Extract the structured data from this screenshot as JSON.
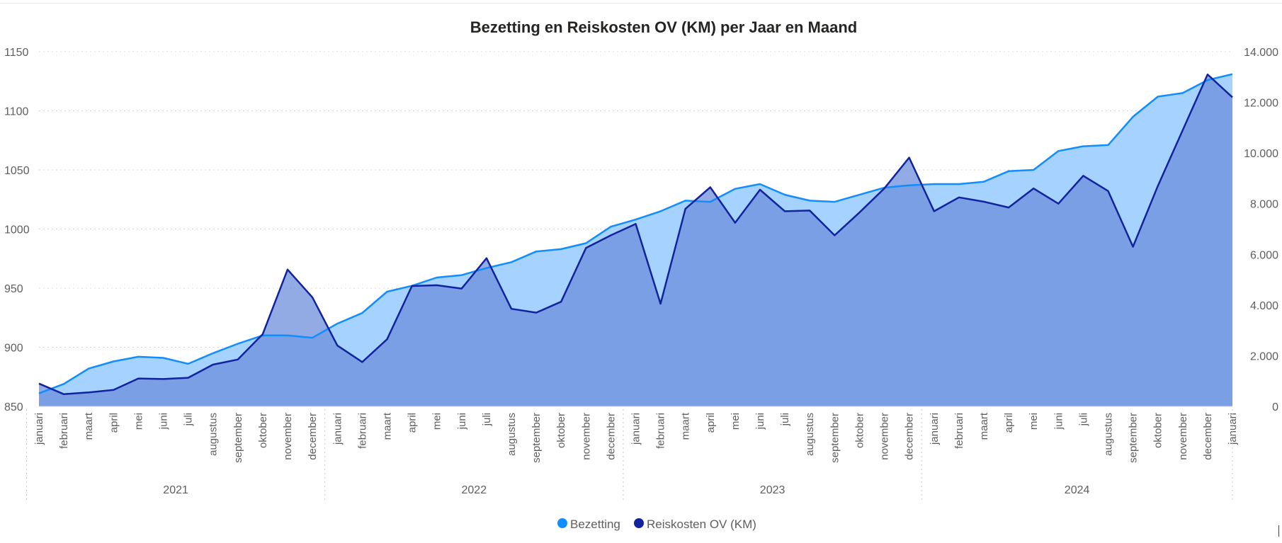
{
  "chart_data": {
    "type": "area",
    "title": "Bezetting en Reiskosten OV (KM) per Jaar en Maand",
    "years": [
      "2021",
      "2022",
      "2023",
      "2024"
    ],
    "months": [
      "januari",
      "februari",
      "maart",
      "april",
      "mei",
      "juni",
      "juli",
      "augustus",
      "september",
      "oktober",
      "november",
      "december"
    ],
    "left_axis": {
      "ticks": [
        "850",
        "900",
        "950",
        "1000",
        "1050",
        "1100",
        "1150"
      ],
      "ylim": [
        850,
        1150
      ]
    },
    "right_axis": {
      "ticks": [
        "0",
        "2.000",
        "4.000",
        "6.000",
        "8.000",
        "10.000",
        "12.000",
        "14.000"
      ],
      "ylim": [
        0,
        14000
      ]
    },
    "series": [
      {
        "name": "Bezetting",
        "axis": "left",
        "color": "#118DFF",
        "fill": "#A6D2FF",
        "values": [
          861,
          869,
          882,
          888,
          892,
          891,
          886,
          895,
          903,
          910,
          910,
          908,
          920,
          929,
          947,
          952,
          959,
          961,
          967,
          972,
          981,
          983,
          988,
          1002,
          1008,
          1015,
          1024,
          1023,
          1034,
          1038,
          1029,
          1024,
          1023,
          1029,
          1035,
          1037,
          1038,
          1038,
          1040,
          1049,
          1050,
          1066,
          1070,
          1071,
          1095,
          1112,
          1115,
          1126,
          1131
        ]
      },
      {
        "name": "Reiskosten OV (KM)",
        "axis": "right",
        "color": "#12239E",
        "fill": "#6A8AD9",
        "values": [
          900,
          480,
          550,
          650,
          1100,
          1080,
          1130,
          1650,
          1850,
          2850,
          5400,
          4300,
          2400,
          1750,
          2650,
          4750,
          4780,
          4650,
          5850,
          3850,
          3700,
          4130,
          6250,
          6750,
          7200,
          4050,
          7800,
          8650,
          7250,
          8550,
          7700,
          7730,
          6750,
          7650,
          8600,
          9820,
          7700,
          8250,
          8080,
          7850,
          8600,
          8000,
          9100,
          8500,
          6300,
          8700,
          10900,
          13100,
          12200
        ]
      }
    ],
    "legend": {
      "position": "bottom-center",
      "items": [
        "Bezetting",
        "Reiskosten OV (KM)"
      ]
    },
    "grid": true
  }
}
